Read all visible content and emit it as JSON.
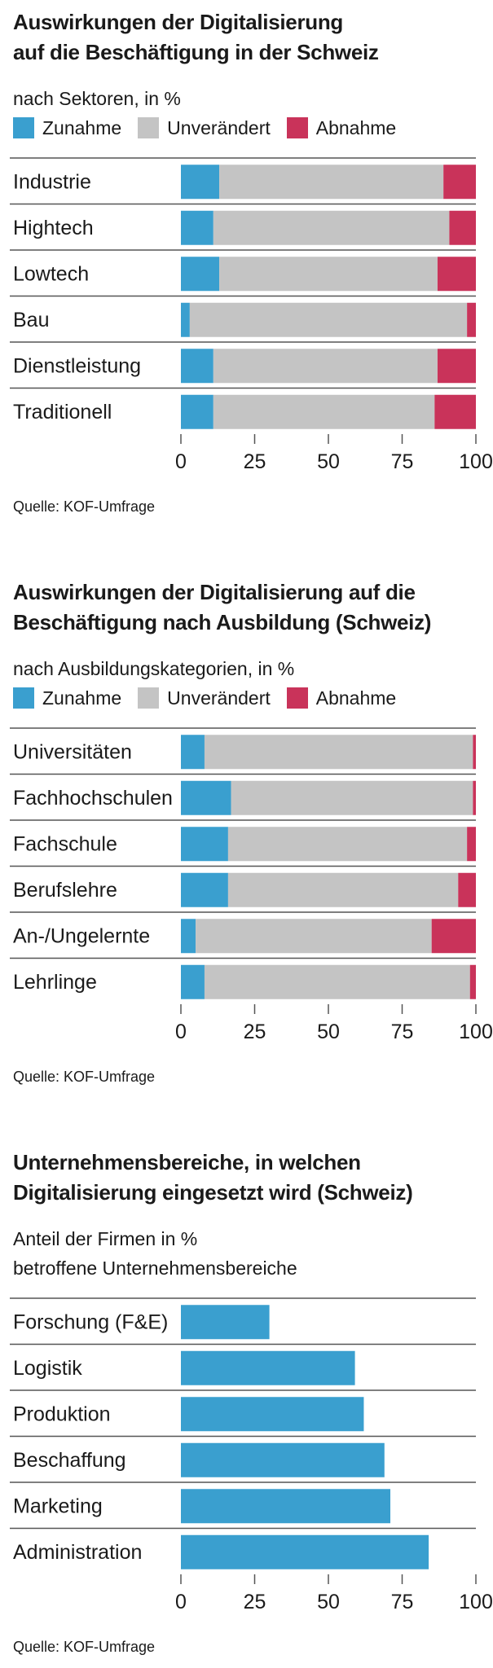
{
  "colors": {
    "increase": "#3a9fcf",
    "unchanged": "#c4c4c4",
    "decrease": "#c9335a",
    "single": "#3a9fcf"
  },
  "panels": [
    {
      "title_lines": [
        "Auswirkungen der Digitalisierung",
        "auf die Beschäftigung in der Schweiz"
      ],
      "subtitle_lines": [
        "nach Sektoren, in %"
      ],
      "legend": [
        "Zunahme",
        "Unverändert",
        "Abnahme"
      ],
      "source": "Quelle: KOF-Umfrage"
    },
    {
      "title_lines": [
        "Auswirkungen der Digitalisierung auf die",
        "Beschäftigung nach Ausbildung (Schweiz)"
      ],
      "subtitle_lines": [
        "nach Ausbildungskategorien, in %"
      ],
      "legend": [
        "Zunahme",
        "Unverändert",
        "Abnahme"
      ],
      "source": "Quelle: KOF-Umfrage"
    },
    {
      "title_lines": [
        "Unternehmensbereiche, in welchen",
        "Digitalisierung eingesetzt wird (Schweiz)"
      ],
      "subtitle_lines": [
        "Anteil der Firmen in %",
        "betroffene Unternehmensbereiche"
      ],
      "legend": [],
      "source": "Quelle: KOF-Umfrage"
    }
  ],
  "chart_data": [
    {
      "type": "bar",
      "stacked": true,
      "orientation": "horizontal",
      "categories": [
        "Industrie",
        "Hightech",
        "Lowtech",
        "Bau",
        "Dienstleistung",
        "Traditionell"
      ],
      "series": [
        {
          "name": "Zunahme",
          "values": [
            13,
            11,
            13,
            3,
            11,
            11
          ]
        },
        {
          "name": "Unverändert",
          "values": [
            76,
            80,
            74,
            94,
            76,
            75
          ]
        },
        {
          "name": "Abnahme",
          "values": [
            11,
            9,
            13,
            3,
            13,
            14
          ]
        }
      ],
      "xlim": [
        0,
        100
      ],
      "xticks": [
        "0",
        "25",
        "50",
        "75",
        "100"
      ]
    },
    {
      "type": "bar",
      "stacked": true,
      "orientation": "horizontal",
      "categories": [
        "Universitäten",
        "Fachhochschulen",
        "Fachschule",
        "Berufslehre",
        "An-/Ungelernte",
        "Lehrlinge"
      ],
      "series": [
        {
          "name": "Zunahme",
          "values": [
            8,
            17,
            16,
            16,
            5,
            8
          ]
        },
        {
          "name": "Unverändert",
          "values": [
            91,
            82,
            81,
            78,
            80,
            90
          ]
        },
        {
          "name": "Abnahme",
          "values": [
            1,
            1,
            3,
            6,
            15,
            2
          ]
        }
      ],
      "xlim": [
        0,
        100
      ],
      "xticks": [
        "0",
        "25",
        "50",
        "75",
        "100"
      ]
    },
    {
      "type": "bar",
      "orientation": "horizontal",
      "categories": [
        "Forschung (F&E)",
        "Logistik",
        "Produktion",
        "Beschaffung",
        "Marketing",
        "Administration"
      ],
      "values": [
        30,
        59,
        62,
        69,
        71,
        84
      ],
      "xlim": [
        0,
        100
      ],
      "xticks": [
        "0",
        "25",
        "50",
        "75",
        "100"
      ]
    }
  ]
}
